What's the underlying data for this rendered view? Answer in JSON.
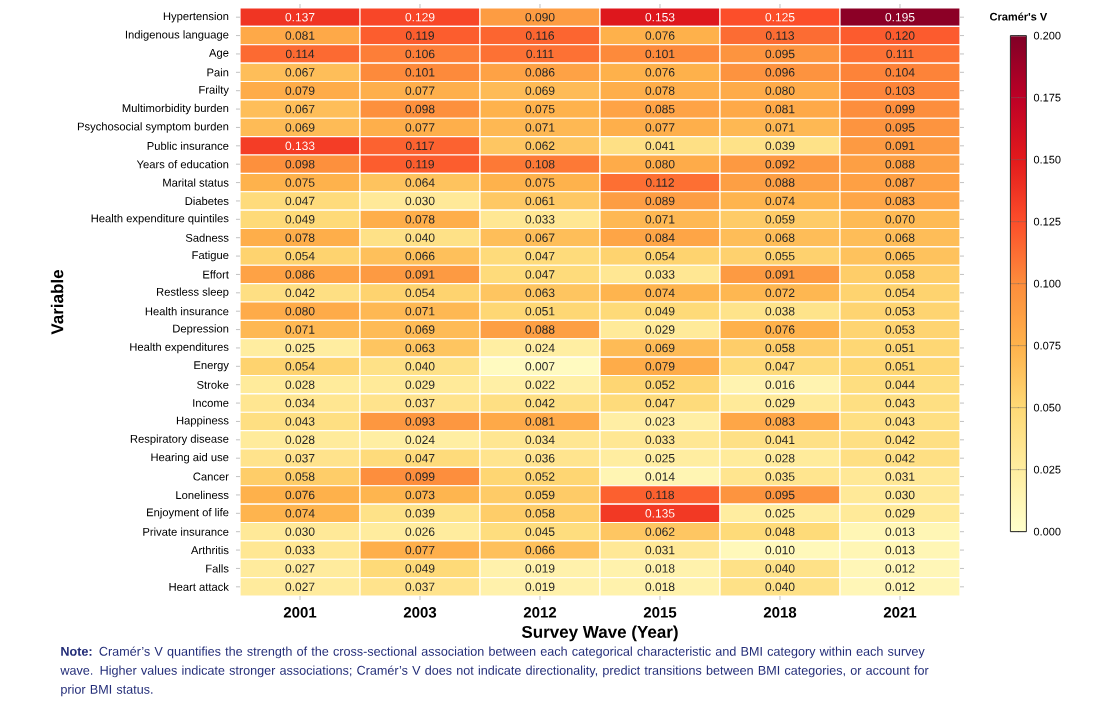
{
  "chart_data": {
    "type": "heatmap",
    "xlabel": "Survey Wave (Year)",
    "ylabel": "Variable",
    "clabel": "Cramér's V",
    "categories": [
      "2001",
      "2003",
      "2012",
      "2015",
      "2018",
      "2021"
    ],
    "y_categories": [
      "Hypertension",
      "Indigenous language",
      "Age",
      "Pain",
      "Frailty",
      "Multimorbidity burden",
      "Psychosocial symptom burden",
      "Public insurance",
      "Years of education",
      "Marital status",
      "Diabetes",
      "Health expenditure quintiles",
      "Sadness",
      "Fatigue",
      "Effort",
      "Restless sleep",
      "Health insurance",
      "Depression",
      "Health expenditures",
      "Energy",
      "Stroke",
      "Income",
      "Happiness",
      "Respiratory disease",
      "Hearing aid use",
      "Cancer",
      "Loneliness",
      "Enjoyment of life",
      "Private insurance",
      "Arthritis",
      "Falls",
      "Heart attack"
    ],
    "cells": [
      [
        0.137,
        0.129,
        0.09,
        0.153,
        0.125,
        0.195
      ],
      [
        0.081,
        0.119,
        0.116,
        0.076,
        0.113,
        0.12
      ],
      [
        0.114,
        0.106,
        0.111,
        0.101,
        0.095,
        0.111
      ],
      [
        0.067,
        0.101,
        0.086,
        0.076,
        0.096,
        0.104
      ],
      [
        0.079,
        0.077,
        0.069,
        0.078,
        0.08,
        0.103
      ],
      [
        0.067,
        0.098,
        0.075,
        0.085,
        0.081,
        0.099
      ],
      [
        0.069,
        0.077,
        0.071,
        0.077,
        0.071,
        0.095
      ],
      [
        0.133,
        0.117,
        0.062,
        0.041,
        0.039,
        0.091
      ],
      [
        0.098,
        0.119,
        0.108,
        0.08,
        0.092,
        0.088
      ],
      [
        0.075,
        0.064,
        0.075,
        0.112,
        0.088,
        0.087
      ],
      [
        0.047,
        0.03,
        0.061,
        0.089,
        0.074,
        0.083
      ],
      [
        0.049,
        0.078,
        0.033,
        0.071,
        0.059,
        0.07
      ],
      [
        0.078,
        0.04,
        0.067,
        0.084,
        0.068,
        0.068
      ],
      [
        0.054,
        0.066,
        0.047,
        0.054,
        0.055,
        0.065
      ],
      [
        0.086,
        0.091,
        0.047,
        0.033,
        0.091,
        0.058
      ],
      [
        0.042,
        0.054,
        0.063,
        0.074,
        0.072,
        0.054
      ],
      [
        0.08,
        0.071,
        0.051,
        0.049,
        0.038,
        0.053
      ],
      [
        0.071,
        0.069,
        0.088,
        0.029,
        0.076,
        0.053
      ],
      [
        0.025,
        0.063,
        0.024,
        0.069,
        0.058,
        0.051
      ],
      [
        0.054,
        0.04,
        0.007,
        0.079,
        0.047,
        0.051
      ],
      [
        0.028,
        0.029,
        0.022,
        0.052,
        0.016,
        0.044
      ],
      [
        0.034,
        0.037,
        0.042,
        0.047,
        0.029,
        0.043
      ],
      [
        0.043,
        0.093,
        0.081,
        0.023,
        0.083,
        0.043
      ],
      [
        0.028,
        0.024,
        0.034,
        0.033,
        0.041,
        0.042
      ],
      [
        0.037,
        0.047,
        0.036,
        0.025,
        0.028,
        0.042
      ],
      [
        0.058,
        0.099,
        0.052,
        0.014,
        0.035,
        0.031
      ],
      [
        0.076,
        0.073,
        0.059,
        0.118,
        0.095,
        0.03
      ],
      [
        0.074,
        0.039,
        0.058,
        0.135,
        0.025,
        0.029
      ],
      [
        0.03,
        0.026,
        0.045,
        0.062,
        0.048,
        0.013
      ],
      [
        0.033,
        0.077,
        0.066,
        0.031,
        0.01,
        0.013
      ],
      [
        0.027,
        0.049,
        0.019,
        0.018,
        0.04,
        0.012
      ],
      [
        0.027,
        0.037,
        0.019,
        0.018,
        0.04,
        0.012
      ]
    ],
    "cell_labels": [
      [
        "0.137",
        "0.129",
        "0.090",
        "0.153",
        "0.125",
        "0.195"
      ],
      [
        "0.081",
        "0.119",
        "0.116",
        "0.076",
        "0.113",
        "0.120"
      ],
      [
        "0.114",
        "0.106",
        "0.111",
        "0.101",
        "0.095",
        "0.111"
      ],
      [
        "0.067",
        "0.101",
        "0.086",
        "0.076",
        "0.096",
        "0.104"
      ],
      [
        "0.079",
        "0.077",
        "0.069",
        "0.078",
        "0.080",
        "0.103"
      ],
      [
        "0.067",
        "0.098",
        "0.075",
        "0.085",
        "0.081",
        "0.099"
      ],
      [
        "0.069",
        "0.077",
        "0.071",
        "0.077",
        "0.071",
        "0.095"
      ],
      [
        "0.133",
        "0.117",
        "0.062",
        "0.041",
        "0.039",
        "0.091"
      ],
      [
        "0.098",
        "0.119",
        "0.108",
        "0.080",
        "0.092",
        "0.088"
      ],
      [
        "0.075",
        "0.064",
        "0.075",
        "0.112",
        "0.088",
        "0.087"
      ],
      [
        "0.047",
        "0.030",
        "0.061",
        "0.089",
        "0.074",
        "0.083"
      ],
      [
        "0.049",
        "0.078",
        "0.033",
        "0.071",
        "0.059",
        "0.070"
      ],
      [
        "0.078",
        "0.040",
        "0.067",
        "0.084",
        "0.068",
        "0.068"
      ],
      [
        "0.054",
        "0.066",
        "0.047",
        "0.054",
        "0.055",
        "0.065"
      ],
      [
        "0.086",
        "0.091",
        "0.047",
        "0.033",
        "0.091",
        "0.058"
      ],
      [
        "0.042",
        "0.054",
        "0.063",
        "0.074",
        "0.072",
        "0.054"
      ],
      [
        "0.080",
        "0.071",
        "0.051",
        "0.049",
        "0.038",
        "0.053"
      ],
      [
        "0.071",
        "0.069",
        "0.088",
        "0.029",
        "0.076",
        "0.053"
      ],
      [
        "0.025",
        "0.063",
        "0.024",
        "0.069",
        "0.058",
        "0.051"
      ],
      [
        "0.054",
        "0.040",
        "0.007",
        "0.079",
        "0.047",
        "0.051"
      ],
      [
        "0.028",
        "0.029",
        "0.022",
        "0.052",
        "0.016",
        "0.044"
      ],
      [
        "0.034",
        "0.037",
        "0.042",
        "0.047",
        "0.029",
        "0.043"
      ],
      [
        "0.043",
        "0.093",
        "0.081",
        "0.023",
        "0.083",
        "0.043"
      ],
      [
        "0.028",
        "0.024",
        "0.034",
        "0.033",
        "0.041",
        "0.042"
      ],
      [
        "0.037",
        "0.047",
        "0.036",
        "0.025",
        "0.028",
        "0.042"
      ],
      [
        "0.058",
        "0.099",
        "0.052",
        "0.014",
        "0.035",
        "0.031"
      ],
      [
        "0.076",
        "0.073",
        "0.059",
        "0.118",
        "0.095",
        "0.030"
      ],
      [
        "0.074",
        "0.039",
        "0.058",
        "0.135",
        "0.025",
        "0.029"
      ],
      [
        "0.030",
        "0.026",
        "0.045",
        "0.062",
        "0.048",
        "0.013"
      ],
      [
        "0.033",
        "0.077",
        "0.066",
        "0.031",
        "0.010",
        "0.013"
      ],
      [
        "0.027",
        "0.049",
        "0.019",
        "0.018",
        "0.040",
        "0.012"
      ],
      [
        "0.027",
        "0.037",
        "0.019",
        "0.018",
        "0.040",
        "0.012"
      ]
    ],
    "clim": [
      0,
      0.2
    ],
    "cticks": [
      {
        "value": 0,
        "label": "0.000"
      },
      {
        "value": 0.025,
        "label": "0.025"
      },
      {
        "value": 0.05,
        "label": "0.050"
      },
      {
        "value": 0.075,
        "label": "0.075"
      },
      {
        "value": 0.1,
        "label": "0.100"
      },
      {
        "value": 0.125,
        "label": "0.125"
      },
      {
        "value": 0.15,
        "label": "0.150"
      },
      {
        "value": 0.175,
        "label": "0.175"
      },
      {
        "value": 0.2,
        "label": "0.200"
      }
    ],
    "annotations": [
      "**Note:** Cramér’s V quantifies the strength of the cross-sectional association between each categorical characteristic and BMI category within each survey wave. Higher values indicate stronger associations; Cramér’s V does not indicate directionality, predict transitions between BMI categories, or account for prior BMI status."
    ]
  }
}
